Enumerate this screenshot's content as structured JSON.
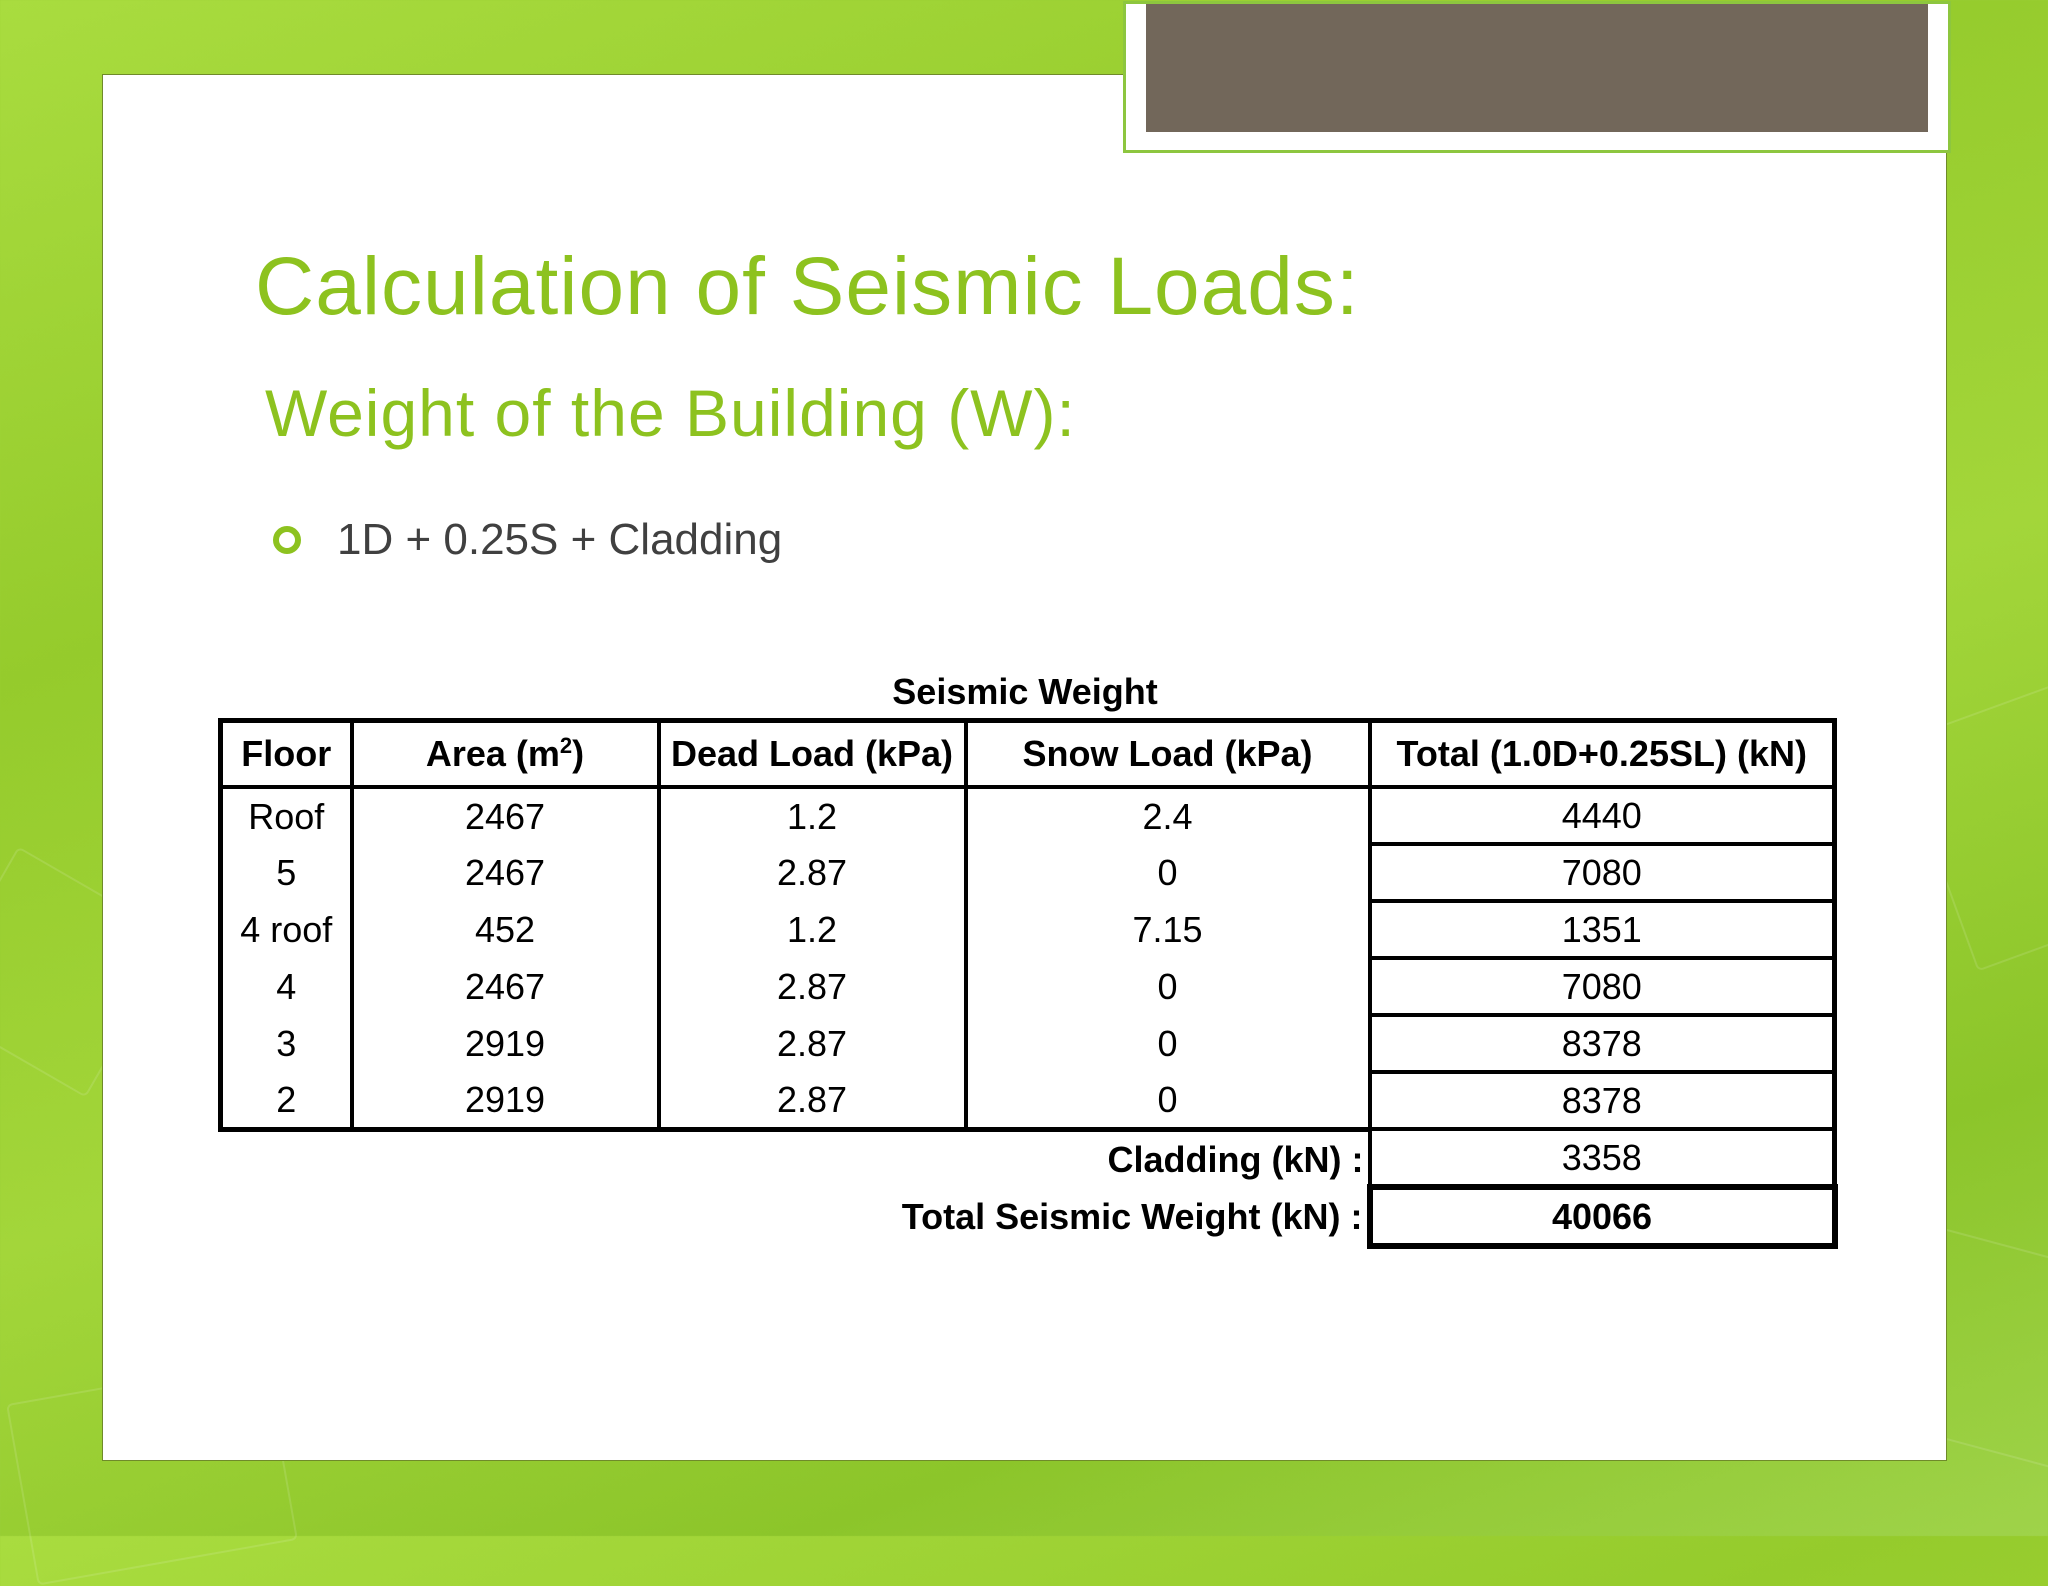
{
  "slide": {
    "title": "Calculation of Seismic Loads:",
    "subtitle": "Weight of the Building (W):",
    "bullet": "1D + 0.25S + Cladding"
  },
  "table": {
    "caption": "Seismic Weight",
    "headers": {
      "floor": "Floor",
      "area": "Area (m",
      "area_sup": "2",
      "area_close": ")",
      "dead": "Dead Load (kPa)",
      "snow": "Snow Load (kPa)",
      "total": "Total (1.0D+0.25SL) (kN)"
    },
    "rows": [
      {
        "floor": "Roof",
        "area": "2467",
        "dead": "1.2",
        "snow": "2.4",
        "total": "4440"
      },
      {
        "floor": "5",
        "area": "2467",
        "dead": "2.87",
        "snow": "0",
        "total": "7080"
      },
      {
        "floor": "4 roof",
        "area": "452",
        "dead": "1.2",
        "snow": "7.15",
        "total": "1351"
      },
      {
        "floor": "4",
        "area": "2467",
        "dead": "2.87",
        "snow": "0",
        "total": "7080"
      },
      {
        "floor": "3",
        "area": "2919",
        "dead": "2.87",
        "snow": "0",
        "total": "8378"
      },
      {
        "floor": "2",
        "area": "2919",
        "dead": "2.87",
        "snow": "0",
        "total": "8378"
      }
    ],
    "cladding_label": "Cladding (kN) :",
    "cladding_value": "3358",
    "total_label": "Total Seismic Weight (kN) :",
    "total_value": "40066"
  },
  "colors": {
    "accent_green": "#8dc21f",
    "header_box": "#72675a",
    "background_green": "#9fd34a"
  }
}
